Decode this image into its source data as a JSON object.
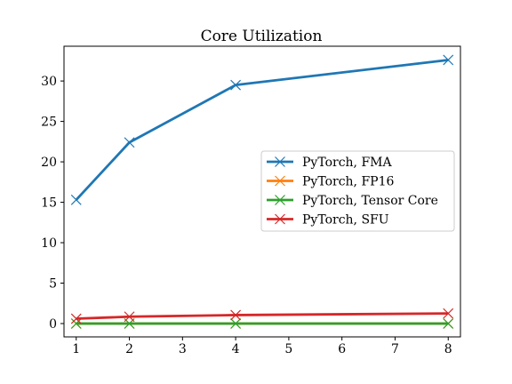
{
  "chart_data": {
    "type": "line",
    "title": "Core Utilization",
    "xlabel": "",
    "ylabel": "",
    "x": [
      1,
      2,
      4,
      8
    ],
    "xticks": [
      1,
      2,
      3,
      4,
      5,
      6,
      7,
      8
    ],
    "yticks": [
      0,
      5,
      10,
      15,
      20,
      25,
      30
    ],
    "xlim": [
      0.77,
      8.23
    ],
    "ylim": [
      -1.65,
      34.3
    ],
    "grid": false,
    "legend_position": "center-right",
    "marker": "x",
    "series": [
      {
        "name": "PyTorch, FMA",
        "color": "#1f77b4",
        "values": [
          15.3,
          22.4,
          29.5,
          32.6
        ]
      },
      {
        "name": "PyTorch, FP16",
        "color": "#ff7f0e",
        "values": [
          0,
          0,
          0,
          0
        ]
      },
      {
        "name": "PyTorch, Tensor Core",
        "color": "#2ca02c",
        "values": [
          0,
          0,
          0,
          0
        ]
      },
      {
        "name": "PyTorch, SFU",
        "color": "#d62728",
        "values": [
          0.6,
          0.85,
          1.05,
          1.25
        ]
      }
    ]
  }
}
